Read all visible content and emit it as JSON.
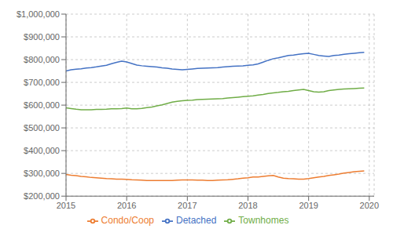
{
  "chart_data": {
    "type": "line",
    "x": [
      2015,
      2015.0833333333333,
      2015.1666666666667,
      2015.25,
      2015.3333333333333,
      2015.4166666666667,
      2015.5,
      2015.5833333333333,
      2015.6666666666667,
      2015.75,
      2015.8333333333333,
      2015.9166666666667,
      2016,
      2016.0833333333333,
      2016.1666666666667,
      2016.25,
      2016.3333333333333,
      2016.4166666666667,
      2016.5,
      2016.5833333333333,
      2016.6666666666667,
      2016.75,
      2016.8333333333333,
      2016.9166666666667,
      2017,
      2017.0833333333333,
      2017.1666666666667,
      2017.25,
      2017.3333333333333,
      2017.4166666666667,
      2017.5,
      2017.5833333333333,
      2017.6666666666667,
      2017.75,
      2017.8333333333333,
      2017.9166666666667,
      2018,
      2018.0833333333333,
      2018.1666666666667,
      2018.25,
      2018.3333333333333,
      2018.4166666666667,
      2018.5,
      2018.5833333333333,
      2018.6666666666667,
      2018.75,
      2018.8333333333333,
      2018.9166666666667,
      2019,
      2019.0833333333333,
      2019.1666666666667,
      2019.25,
      2019.3333333333333,
      2019.4166666666667,
      2019.5,
      2019.5833333333333,
      2019.6666666666667,
      2019.75,
      2019.8333333333333,
      2019.9166666666667
    ],
    "series": [
      {
        "name": "Detached",
        "color": "#4472C4",
        "values": [
          750000,
          755000,
          758000,
          760000,
          763000,
          765000,
          768000,
          772000,
          775000,
          782000,
          788000,
          793000,
          790000,
          783000,
          776000,
          773000,
          771000,
          769000,
          767000,
          764000,
          762000,
          759000,
          757000,
          755000,
          757000,
          759000,
          761000,
          762000,
          763000,
          764000,
          765000,
          767000,
          769000,
          771000,
          772000,
          773000,
          775000,
          777000,
          781000,
          789000,
          797000,
          804000,
          808000,
          813000,
          818000,
          820000,
          823000,
          826000,
          828000,
          823000,
          818000,
          816000,
          814000,
          818000,
          820000,
          823000,
          826000,
          828000,
          830000,
          832000
        ]
      },
      {
        "name": "Townhomes",
        "color": "#70AD47",
        "values": [
          588000,
          585000,
          582000,
          580000,
          580000,
          580000,
          581000,
          581000,
          582000,
          584000,
          584000,
          585000,
          587000,
          584000,
          584000,
          586000,
          589000,
          592000,
          597000,
          601000,
          607000,
          613000,
          617000,
          619000,
          621000,
          622000,
          624000,
          625000,
          626000,
          627000,
          628000,
          629000,
          631000,
          633000,
          635000,
          637000,
          639000,
          641000,
          644000,
          647000,
          651000,
          654000,
          656000,
          659000,
          661000,
          664000,
          667000,
          669000,
          664000,
          659000,
          657000,
          659000,
          664000,
          667000,
          669000,
          671000,
          672000,
          673000,
          674000,
          675000
        ]
      },
      {
        "name": "Condo/Coop",
        "color": "#ED7D31",
        "values": [
          295000,
          292000,
          290000,
          287000,
          285000,
          282000,
          281000,
          279000,
          277000,
          276000,
          275000,
          275000,
          274000,
          272000,
          271000,
          270000,
          269000,
          269000,
          269000,
          269000,
          269000,
          269000,
          270000,
          271000,
          271000,
          271000,
          270000,
          270000,
          269000,
          269000,
          270000,
          271000,
          272000,
          274000,
          276000,
          279000,
          281000,
          284000,
          284000,
          287000,
          289000,
          291000,
          284000,
          279000,
          277000,
          276000,
          275000,
          275000,
          277000,
          281000,
          284000,
          287000,
          291000,
          294000,
          297000,
          301000,
          304000,
          307000,
          309000,
          311000
        ]
      }
    ],
    "xlim": [
      2015.0,
      2020.08
    ],
    "xticks": [
      2015,
      2016,
      2017,
      2018,
      2019,
      2020
    ],
    "ylim": [
      200000,
      1000000
    ],
    "yticks": [
      {
        "value": 200000,
        "label": "$200,000"
      },
      {
        "value": 300000,
        "label": "$300,000"
      },
      {
        "value": 400000,
        "label": "$400,000"
      },
      {
        "value": 500000,
        "label": "$500,000"
      },
      {
        "value": 600000,
        "label": "$600,000"
      },
      {
        "value": 700000,
        "label": "$700,000"
      },
      {
        "value": 800000,
        "label": "$800,000"
      },
      {
        "value": 900000,
        "label": "$900,000"
      },
      {
        "value": 1000000,
        "label": "$1,000,000"
      }
    ],
    "grid": true,
    "legend": "bottom"
  }
}
